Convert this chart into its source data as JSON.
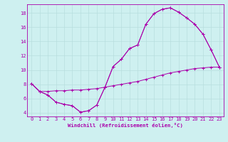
{
  "xlabel": "Windchill (Refroidissement éolien,°C)",
  "bg_color": "#cef0f0",
  "line_color": "#aa00aa",
  "grid_color": "#b8dede",
  "xlim": [
    -0.5,
    23.5
  ],
  "ylim": [
    3.5,
    19.2
  ],
  "xticks": [
    0,
    1,
    2,
    3,
    4,
    5,
    6,
    7,
    8,
    9,
    10,
    11,
    12,
    13,
    14,
    15,
    16,
    17,
    18,
    19,
    20,
    21,
    22,
    23
  ],
  "yticks": [
    4,
    6,
    8,
    10,
    12,
    14,
    16,
    18
  ],
  "series": [
    {
      "x": [
        0,
        1,
        2,
        3,
        4,
        5,
        6,
        7,
        8,
        9,
        10,
        11,
        12,
        13,
        14,
        15,
        16,
        17,
        18,
        19,
        20,
        21,
        22,
        23
      ],
      "y": [
        8.1,
        7.0,
        6.5,
        5.5,
        5.2,
        5.0,
        4.1,
        4.3,
        5.1,
        7.6,
        10.5,
        11.5,
        13.0,
        13.5,
        16.4,
        17.9,
        18.5,
        18.7,
        18.1,
        17.3,
        16.4,
        15.0,
        12.8,
        10.4
      ]
    },
    {
      "x": [
        0,
        1,
        2,
        3,
        4,
        5,
        6,
        7,
        8,
        9,
        10,
        11,
        12,
        13,
        14,
        15,
        16,
        17,
        18,
        19,
        20,
        21,
        22,
        23
      ],
      "y": [
        8.1,
        7.0,
        6.5,
        5.5,
        5.2,
        5.0,
        4.1,
        4.3,
        5.1,
        7.6,
        10.5,
        11.5,
        13.0,
        13.5,
        16.4,
        17.9,
        18.5,
        18.7,
        18.1,
        17.3,
        16.4,
        15.0,
        12.8,
        10.4
      ]
    },
    {
      "x": [
        0,
        1,
        2,
        3,
        4,
        5,
        6,
        7,
        8,
        9,
        10,
        11,
        12,
        13,
        14,
        15,
        16,
        17,
        18,
        19,
        20,
        21,
        22,
        23
      ],
      "y": [
        8.1,
        7.0,
        7.0,
        7.1,
        7.1,
        7.2,
        7.2,
        7.3,
        7.4,
        7.6,
        7.8,
        8.0,
        8.2,
        8.4,
        8.7,
        9.0,
        9.3,
        9.6,
        9.8,
        10.0,
        10.2,
        10.3,
        10.4,
        10.4
      ]
    }
  ]
}
